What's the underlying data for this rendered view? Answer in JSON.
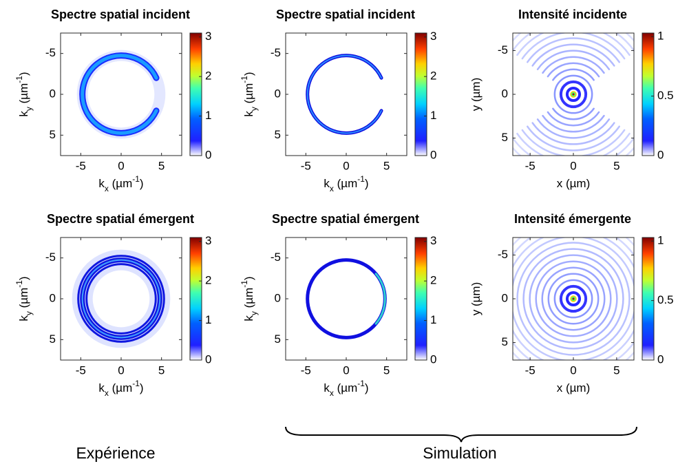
{
  "chart_data": [
    {
      "type": "image",
      "title": "Spectre spatial incident",
      "xlabel": [
        {
          "text": "k"
        },
        {
          "text": "x",
          "shift": "sub"
        },
        {
          "text": " (µm"
        },
        {
          "text": "-1",
          "shift": "super"
        },
        {
          "text": ")"
        }
      ],
      "ylabel": [
        {
          "text": "k"
        },
        {
          "text": "y",
          "shift": "sub"
        },
        {
          "text": " (µm"
        },
        {
          "text": "-1",
          "shift": "super"
        },
        {
          "text": ")"
        }
      ],
      "xlim": [
        -7.5,
        7.5
      ],
      "ylim": [
        -7.5,
        7.5
      ],
      "yreverse": true,
      "xticks": [
        -5,
        0,
        5
      ],
      "yticks": [
        -5,
        0,
        5
      ],
      "colormap": "jet",
      "clim": [
        0,
        3.1
      ],
      "cticks": [
        0,
        1,
        2,
        3
      ]
    },
    {
      "type": "image",
      "title": "Spectre spatial incident",
      "xlabel": [
        {
          "text": "k"
        },
        {
          "text": "x",
          "shift": "sub"
        },
        {
          "text": " (µm"
        },
        {
          "text": "-1",
          "shift": "super"
        },
        {
          "text": ")"
        }
      ],
      "ylabel": [
        {
          "text": "k"
        },
        {
          "text": "y",
          "shift": "sub"
        },
        {
          "text": " (µm"
        },
        {
          "text": "-1",
          "shift": "super"
        },
        {
          "text": ")"
        }
      ],
      "xlim": [
        -7.5,
        7.5
      ],
      "ylim": [
        -7.5,
        7.5
      ],
      "yreverse": true,
      "xticks": [
        -5,
        0,
        5
      ],
      "yticks": [
        -5,
        0,
        5
      ],
      "colormap": "jet",
      "clim": [
        0,
        3.1
      ],
      "cticks": [
        0,
        1,
        2,
        3
      ]
    },
    {
      "type": "image",
      "title": "Intensité incidente",
      "xlabel": [
        {
          "text": "x (µm)"
        }
      ],
      "ylabel": [
        {
          "text": "y (µm)"
        }
      ],
      "xlim": [
        -7,
        7
      ],
      "ylim": [
        -7,
        7
      ],
      "yreverse": true,
      "xticks": [
        -5,
        0,
        5
      ],
      "yticks": [
        -5,
        0,
        5
      ],
      "colormap": "jet",
      "clim": [
        0,
        1.03
      ],
      "cticks": [
        0,
        0.5,
        1
      ]
    },
    {
      "type": "image",
      "title": "Spectre spatial émergent",
      "xlabel": [
        {
          "text": "k"
        },
        {
          "text": "x",
          "shift": "sub"
        },
        {
          "text": " (µm"
        },
        {
          "text": "-1",
          "shift": "super"
        },
        {
          "text": ")"
        }
      ],
      "ylabel": [
        {
          "text": "k"
        },
        {
          "text": "y",
          "shift": "sub"
        },
        {
          "text": " (µm"
        },
        {
          "text": "-1",
          "shift": "super"
        },
        {
          "text": ")"
        }
      ],
      "xlim": [
        -7.5,
        7.5
      ],
      "ylim": [
        -7.5,
        7.5
      ],
      "yreverse": true,
      "xticks": [
        -5,
        0,
        5
      ],
      "yticks": [
        -5,
        0,
        5
      ],
      "colormap": "jet",
      "clim": [
        0,
        3.1
      ],
      "cticks": [
        0,
        1,
        2,
        3
      ]
    },
    {
      "type": "image",
      "title": "Spectre spatial émergent",
      "xlabel": [
        {
          "text": "k"
        },
        {
          "text": "x",
          "shift": "sub"
        },
        {
          "text": " (µm"
        },
        {
          "text": "-1",
          "shift": "super"
        },
        {
          "text": ")"
        }
      ],
      "ylabel": [
        {
          "text": "k"
        },
        {
          "text": "y",
          "shift": "sub"
        },
        {
          "text": " (µm"
        },
        {
          "text": "-1",
          "shift": "super"
        },
        {
          "text": ")"
        }
      ],
      "xlim": [
        -7.5,
        7.5
      ],
      "ylim": [
        -7.5,
        7.5
      ],
      "yreverse": true,
      "xticks": [
        -5,
        0,
        5
      ],
      "yticks": [
        -5,
        0,
        5
      ],
      "colormap": "jet",
      "clim": [
        0,
        3.1
      ],
      "cticks": [
        0,
        1,
        2,
        3
      ]
    },
    {
      "type": "image",
      "title": "Intensité émergente",
      "xlabel": [
        {
          "text": "x (µm)"
        }
      ],
      "ylabel": [
        {
          "text": "y (µm)"
        }
      ],
      "xlim": [
        -7,
        7
      ],
      "ylim": [
        -7,
        7
      ],
      "yreverse": true,
      "xticks": [
        -5,
        0,
        5
      ],
      "yticks": [
        -5,
        0,
        5
      ],
      "colormap": "jet",
      "clim": [
        0,
        1.03
      ],
      "cticks": [
        0,
        0.5,
        1
      ]
    }
  ],
  "captions": {
    "experience": "Expérience",
    "simulation": "Simulation"
  }
}
